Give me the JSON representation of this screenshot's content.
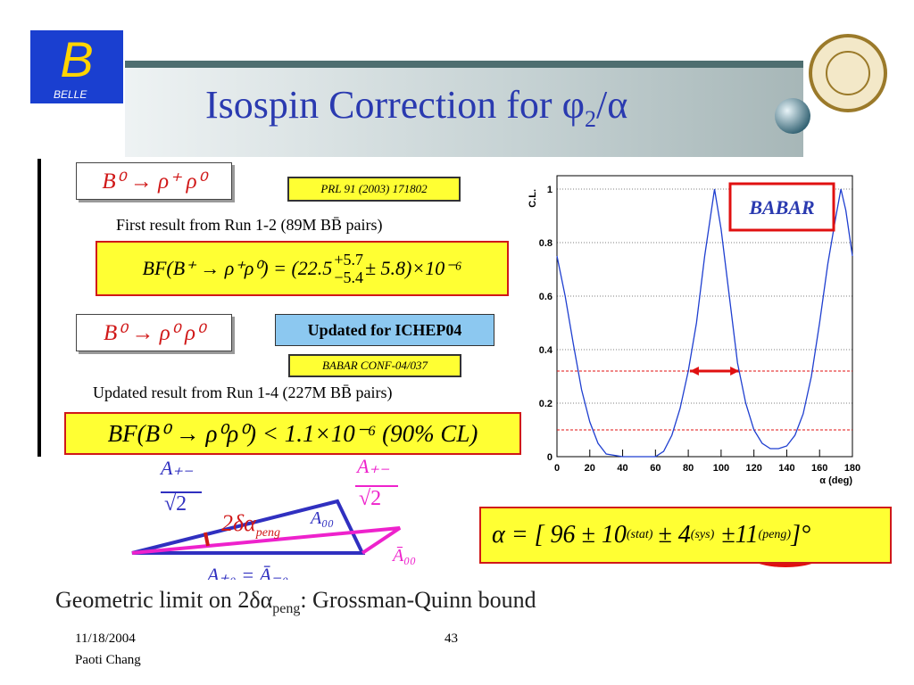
{
  "header": {
    "logo": "BELLE",
    "title_main": "Isospin Correction for  φ",
    "title_sub": "2",
    "title_end": "/α"
  },
  "decay1": {
    "label": "B⁰ → ρ⁺ ρ⁰",
    "reference": "PRL 91 (2003) 171802",
    "note": "First result from Run 1-2 (89M BB̄ pairs)",
    "result_left": "BF(B⁺ → ρ⁺ρ⁰) = (22.5",
    "result_up": "+5.7",
    "result_down": "−5.4",
    "result_right": "± 5.8)×10⁻⁶"
  },
  "decay2": {
    "label": "B⁰ → ρ⁰ ρ⁰",
    "badge": "Updated for ICHEP04",
    "reference": "BABAR CONF-04/037",
    "note": "Updated result from Run 1-4 (227M BB̄ pairs)",
    "result": "BF(B⁰ → ρ⁰ρ⁰) < 1.1×10⁻⁶  (90% CL)"
  },
  "triangle": {
    "a_pm_left": "A₊₋",
    "sqrt_left": "√2",
    "a_pm_right": "A₊₋",
    "sqrt_right": "√2",
    "delta": "2δα",
    "delta_sub": "peng",
    "a00": "A₀₀",
    "a00_bar": "Ā₀₀",
    "a_p0": "A₊₀ = Ā₋₀"
  },
  "alpha": {
    "lhs": "α = [ 96 ± 10",
    "stat": "(stat)",
    "sys_val": "± 4",
    "sys": "(sys)",
    "peng_val": "±11",
    "peng": "(peng)",
    "rhs": "]°"
  },
  "bottom": {
    "text": "Geometric limit on 2δα",
    "sub": "peng",
    "end": ": Grossman-Quinn bound"
  },
  "footer": {
    "date": "11/18/2004",
    "author": "Paoti Chang",
    "page": "43"
  },
  "chart_data": {
    "type": "line",
    "experiment": "BABAR",
    "ylabel": "C.L.",
    "xlabel": "α (deg)",
    "color": "#1f3fd0",
    "x": [
      0,
      5,
      10,
      15,
      20,
      25,
      30,
      40,
      50,
      60,
      65,
      70,
      75,
      80,
      85,
      90,
      96,
      100,
      105,
      110,
      115,
      120,
      125,
      130,
      135,
      140,
      145,
      150,
      155,
      160,
      165,
      170,
      173,
      176,
      180
    ],
    "values": [
      0.75,
      0.6,
      0.42,
      0.25,
      0.13,
      0.05,
      0.01,
      0,
      0,
      0,
      0.02,
      0.08,
      0.18,
      0.32,
      0.5,
      0.75,
      1,
      0.85,
      0.6,
      0.35,
      0.2,
      0.1,
      0.05,
      0.03,
      0.03,
      0.04,
      0.08,
      0.16,
      0.3,
      0.5,
      0.72,
      0.9,
      1,
      0.92,
      0.75
    ],
    "reference_lines": [
      0.32,
      0.1
    ],
    "interval": [
      81,
      111
    ],
    "xlim": [
      0,
      180
    ],
    "ylim": [
      0,
      1.05
    ],
    "xticks": [
      0,
      20,
      40,
      60,
      80,
      100,
      120,
      140,
      160,
      180
    ],
    "yticks": [
      0,
      0.2,
      0.4,
      0.6,
      0.8,
      1
    ],
    "grid": true
  }
}
